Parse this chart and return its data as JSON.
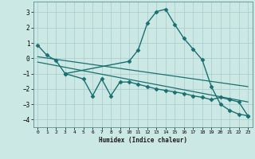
{
  "xlabel": "Humidex (Indice chaleur)",
  "bg_color": "#cce8e4",
  "grid_color": "#a8ccca",
  "line_color": "#1a7070",
  "xlim": [
    -0.5,
    23.5
  ],
  "ylim": [
    -4.5,
    3.7
  ],
  "xticks": [
    0,
    1,
    2,
    3,
    4,
    5,
    6,
    7,
    8,
    9,
    10,
    11,
    12,
    13,
    14,
    15,
    16,
    17,
    18,
    19,
    20,
    21,
    22,
    23
  ],
  "yticks": [
    -4,
    -3,
    -2,
    -1,
    0,
    1,
    2,
    3
  ],
  "series": [
    {
      "x": [
        0,
        1,
        2,
        3,
        10,
        11,
        12,
        13,
        14,
        15,
        16,
        17,
        18,
        19,
        20,
        21,
        22,
        23
      ],
      "y": [
        0.85,
        0.2,
        -0.15,
        -1.0,
        -0.2,
        0.55,
        2.3,
        3.05,
        3.2,
        2.2,
        1.3,
        0.6,
        -0.1,
        -1.85,
        -3.0,
        -3.4,
        -3.65,
        -3.75
      ],
      "marker": "D",
      "markersize": 2.5,
      "linewidth": 1.0
    },
    {
      "x": [
        3,
        5,
        6,
        7,
        8,
        9,
        10,
        11,
        12,
        13,
        14,
        15,
        16,
        17,
        18,
        19,
        20,
        21,
        22,
        23
      ],
      "y": [
        -1.0,
        -1.35,
        -2.45,
        -1.35,
        -2.45,
        -1.55,
        -1.55,
        -1.7,
        -1.85,
        -2.0,
        -2.1,
        -2.2,
        -2.3,
        -2.45,
        -2.55,
        -2.7,
        -2.55,
        -2.7,
        -2.85,
        -3.75
      ],
      "marker": "D",
      "markersize": 2.5,
      "linewidth": 1.0
    },
    {
      "x": [
        0,
        23
      ],
      "y": [
        0.1,
        -1.85
      ],
      "marker": null,
      "linewidth": 0.9
    },
    {
      "x": [
        0,
        23
      ],
      "y": [
        -0.25,
        -2.85
      ],
      "marker": null,
      "linewidth": 0.9
    }
  ]
}
